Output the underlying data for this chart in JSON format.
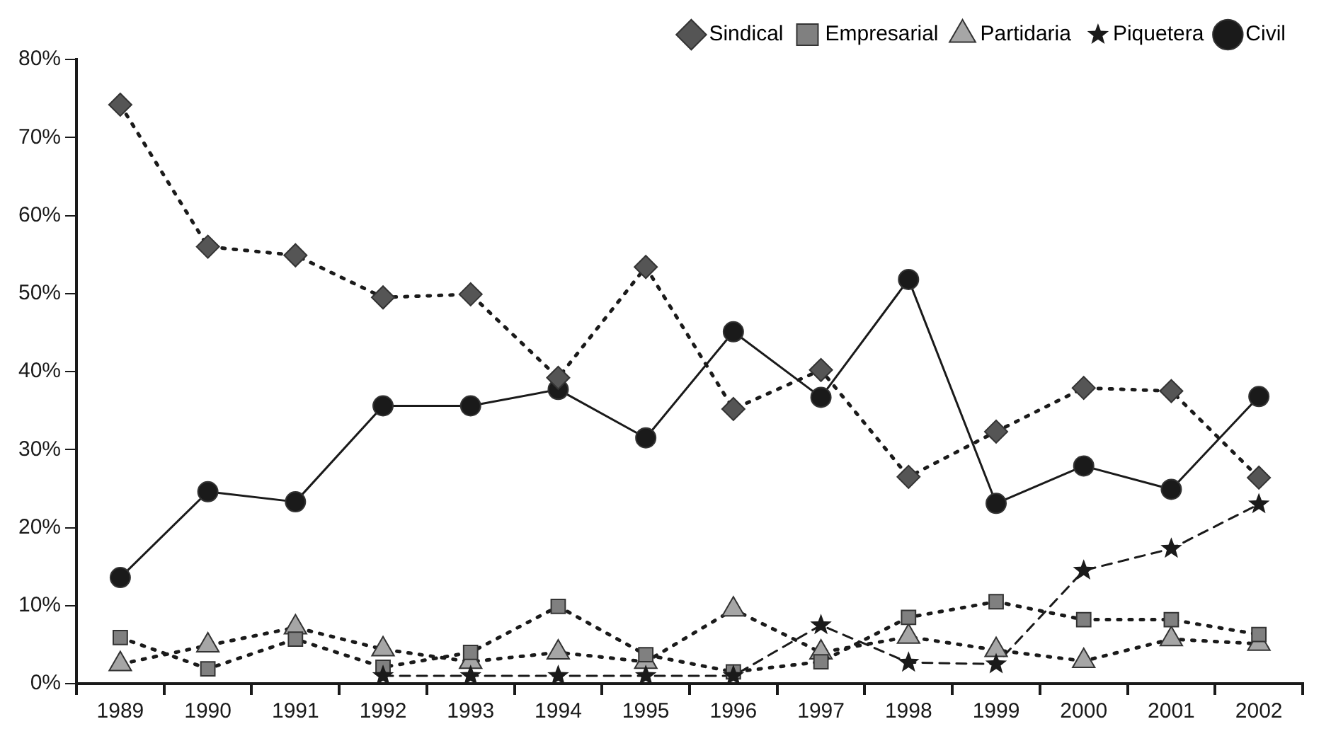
{
  "chart_data": {
    "type": "line",
    "categories": [
      "1989",
      "1990",
      "1991",
      "1992",
      "1993",
      "1994",
      "1995",
      "1996",
      "1997",
      "1998",
      "1999",
      "2000",
      "2001",
      "2002"
    ],
    "ylim": [
      0,
      80
    ],
    "yticks": [
      {
        "value": 0,
        "label": "0%"
      },
      {
        "value": 10,
        "label": "10%"
      },
      {
        "value": 20,
        "label": "20%"
      },
      {
        "value": 30,
        "label": "30%"
      },
      {
        "value": 40,
        "label": "40%"
      },
      {
        "value": 50,
        "label": "50%"
      },
      {
        "value": 60,
        "label": "60%"
      },
      {
        "value": 70,
        "label": "70%"
      },
      {
        "value": 80,
        "label": "80%"
      }
    ],
    "grid": false,
    "legend": "top right",
    "series": [
      {
        "name": "Sindical",
        "color": "#555555",
        "marker": "diamond",
        "line_style": "dotted",
        "values": [
          74.2,
          56.0,
          54.9,
          49.5,
          49.9,
          39.2,
          53.4,
          35.2,
          40.2,
          26.5,
          32.3,
          37.9,
          37.5,
          26.4
        ]
      },
      {
        "name": "Empresarial",
        "color": "#808080",
        "marker": "square",
        "line_style": "dotted",
        "values": [
          5.9,
          1.9,
          5.7,
          2.1,
          4.0,
          9.9,
          3.7,
          1.5,
          2.8,
          8.5,
          10.5,
          8.2,
          8.2,
          6.3
        ]
      },
      {
        "name": "Partidaria",
        "color": "#a6a6a6",
        "marker": "triangle",
        "line_style": "dotted",
        "values": [
          2.5,
          4.9,
          7.2,
          4.4,
          2.8,
          4.0,
          2.8,
          9.5,
          4.0,
          6.0,
          4.3,
          2.9,
          5.7,
          5.1
        ]
      },
      {
        "name": "Piquetera",
        "color": "#1a1a1a",
        "marker": "star",
        "line_style": "dashed",
        "values": [
          null,
          null,
          null,
          1.0,
          1.0,
          1.0,
          1.0,
          1.0,
          7.5,
          2.7,
          2.5,
          14.5,
          17.3,
          23.0
        ]
      },
      {
        "name": "Civil",
        "color": "#1a1a1a",
        "marker": "circle",
        "line_style": "solid",
        "values": [
          13.6,
          24.6,
          23.3,
          35.6,
          35.6,
          37.7,
          31.5,
          45.1,
          36.7,
          51.8,
          23.1,
          27.9,
          24.9,
          36.8
        ]
      }
    ]
  }
}
